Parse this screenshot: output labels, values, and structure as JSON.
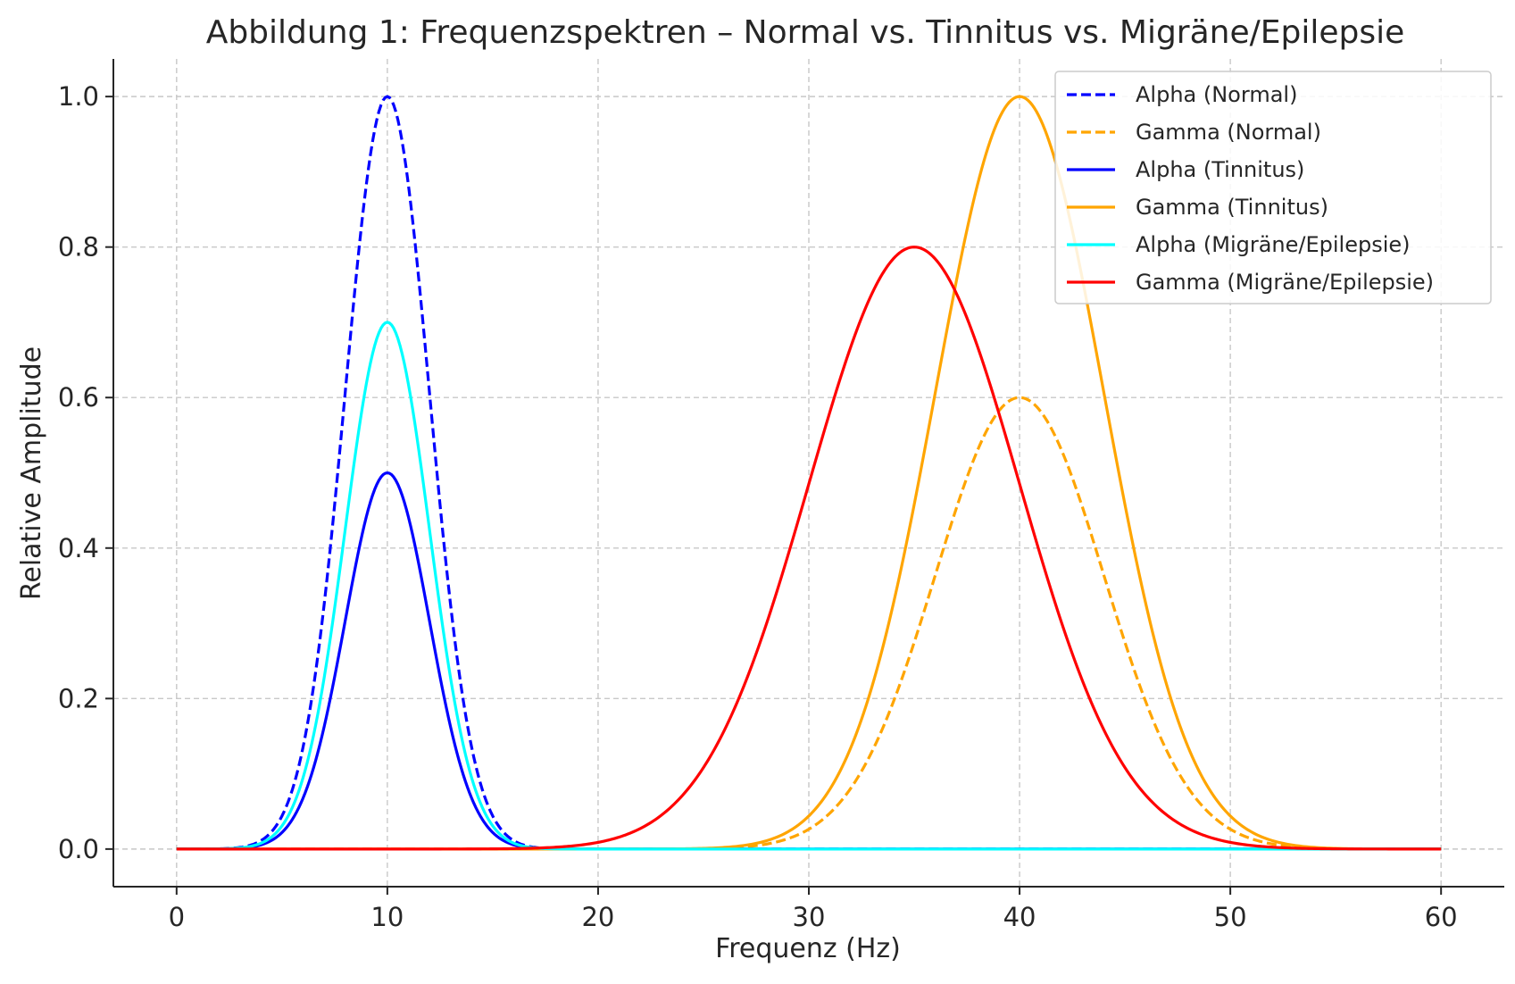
{
  "chart_data": {
    "type": "line",
    "title": "Abbildung 1: Frequenzspektren – Normal vs. Tinnitus vs. Migräne/Epilepsie",
    "xlabel": "Frequenz (Hz)",
    "ylabel": "Relative Amplitude",
    "xlim": [
      -3,
      63
    ],
    "ylim": [
      -0.05,
      1.05
    ],
    "xticks": [
      0,
      10,
      20,
      30,
      40,
      50,
      60
    ],
    "xtick_labels": [
      "0",
      "10",
      "20",
      "30",
      "40",
      "50",
      "60"
    ],
    "yticks": [
      0.0,
      0.2,
      0.4,
      0.6,
      0.8,
      1.0
    ],
    "ytick_labels": [
      "0.0",
      "0.2",
      "0.4",
      "0.6",
      "0.8",
      "1.0"
    ],
    "grid": true,
    "legend_position": "top-right",
    "x_range": [
      0,
      60
    ],
    "series": [
      {
        "name": "Alpha (Normal)",
        "color": "#0000ff",
        "dashed": true,
        "center": 10,
        "amplitude": 1.0,
        "sigma": 2.0
      },
      {
        "name": "Gamma (Normal)",
        "color": "#ffa500",
        "dashed": true,
        "center": 40,
        "amplitude": 0.6,
        "sigma": 4.0
      },
      {
        "name": "Alpha (Tinnitus)",
        "color": "#0000ff",
        "dashed": false,
        "center": 10,
        "amplitude": 0.5,
        "sigma": 2.0
      },
      {
        "name": "Gamma (Tinnitus)",
        "color": "#ffa500",
        "dashed": false,
        "center": 40,
        "amplitude": 1.0,
        "sigma": 4.0
      },
      {
        "name": "Alpha (Migräne/Epilepsie)",
        "color": "#00ffff",
        "dashed": false,
        "center": 10,
        "amplitude": 0.7,
        "sigma": 2.0
      },
      {
        "name": "Gamma (Migräne/Epilepsie)",
        "color": "#ff0000",
        "dashed": false,
        "center": 35,
        "amplitude": 0.8,
        "sigma": 5.0
      }
    ]
  }
}
